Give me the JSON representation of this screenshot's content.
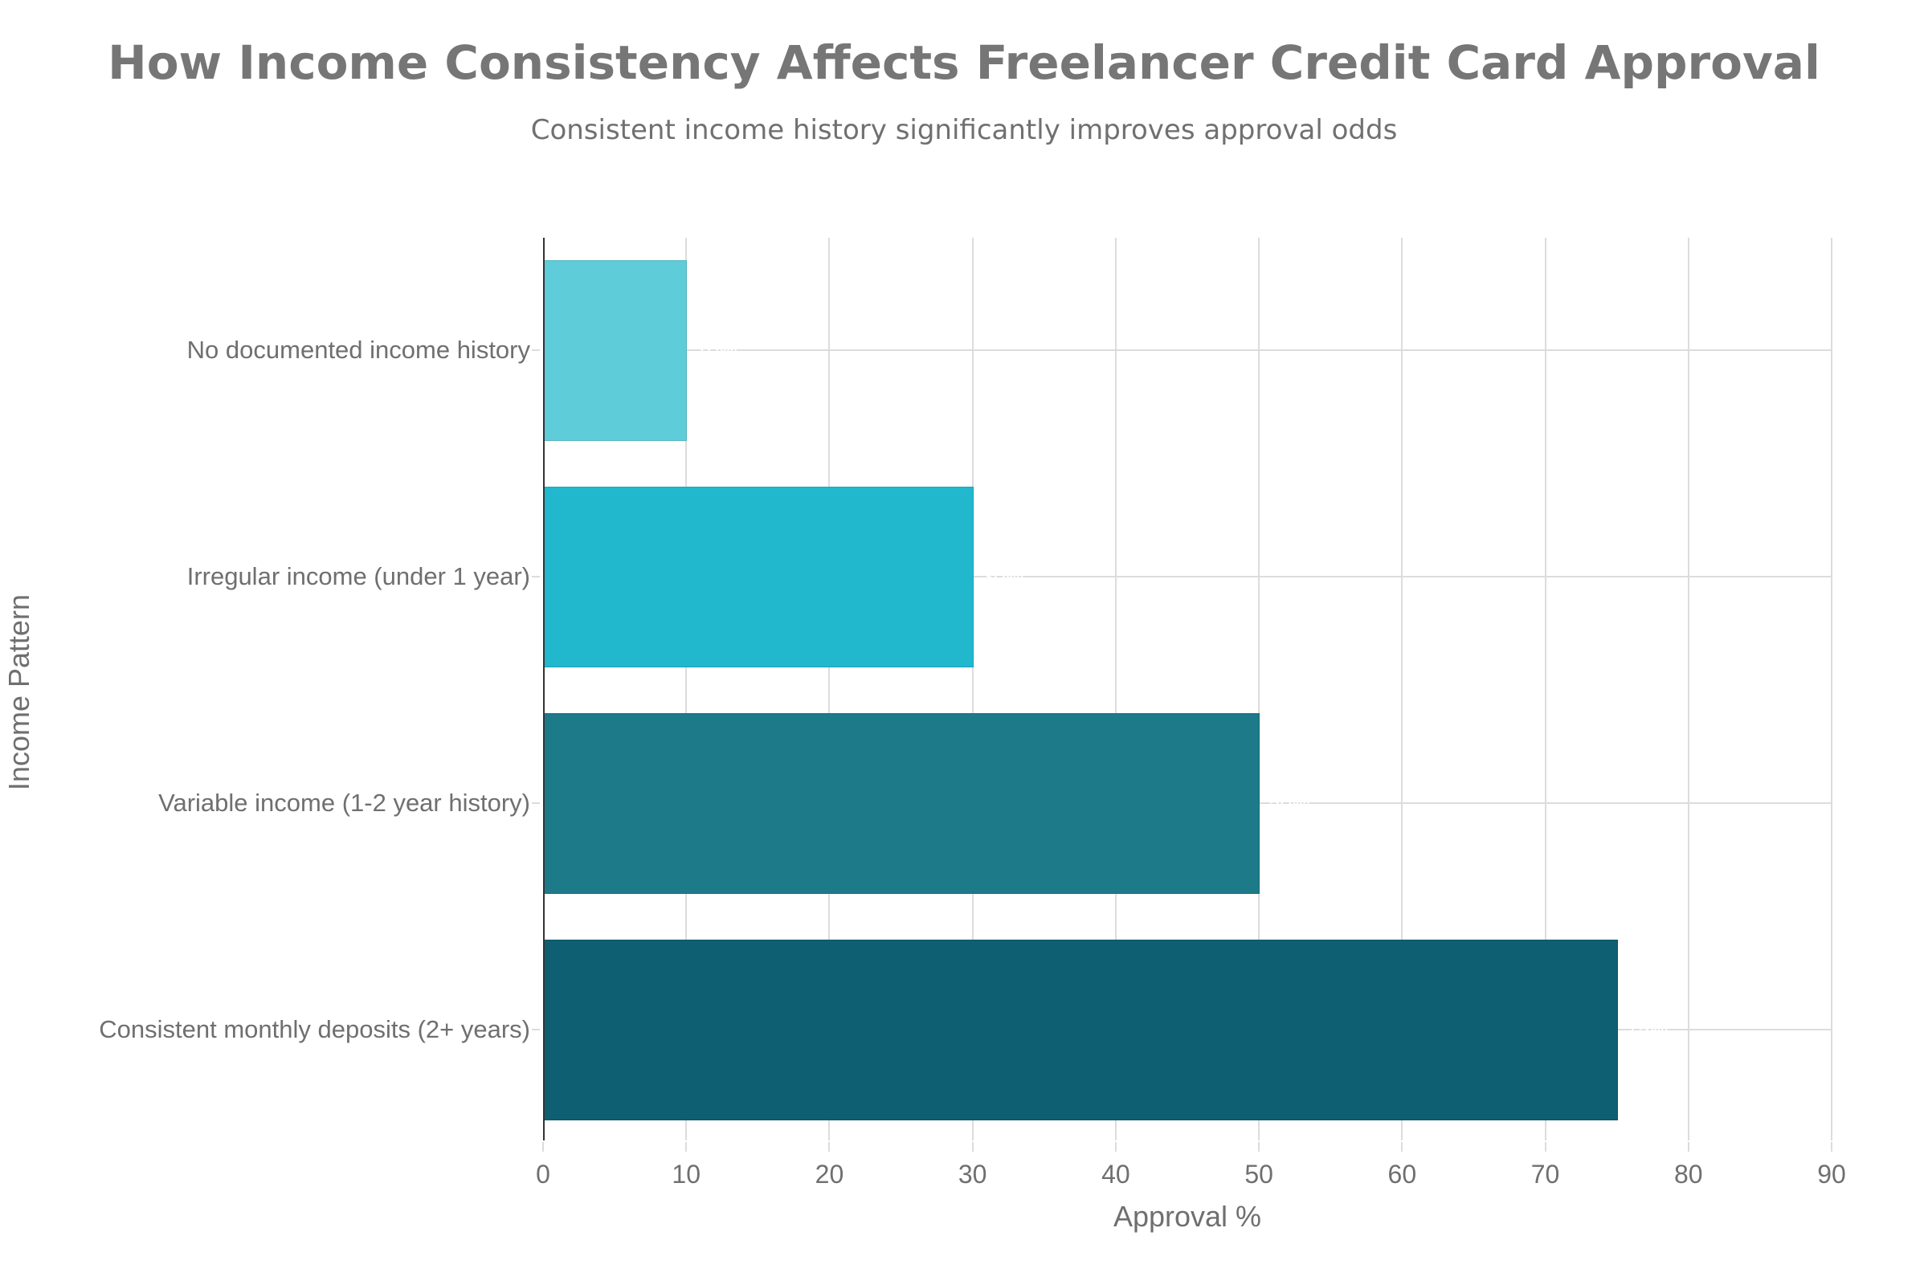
{
  "header": {
    "title": "How Income Consistency Affects Freelancer Credit Card Approval",
    "subtitle": "Consistent income history significantly improves approval odds"
  },
  "axes": {
    "x_title": "Approval %",
    "y_title": "Income Pattern",
    "x_ticks": [
      "0",
      "10",
      "20",
      "30",
      "40",
      "50",
      "60",
      "70",
      "80",
      "90"
    ]
  },
  "bars": [
    {
      "label": "No documented income history",
      "value": 10,
      "value_label": "10%",
      "color": "#5FCDD9"
    },
    {
      "label": "Irregular income (under 1 year)",
      "value": 30,
      "value_label": "30%",
      "color": "#21B8CE"
    },
    {
      "label": "Variable income (1-2 year history)",
      "value": 50,
      "value_label": "50%",
      "color": "#1D7A89"
    },
    {
      "label": "Consistent monthly deposits (2+ years)",
      "value": 75,
      "value_label": "75%",
      "color": "#0F5F72"
    }
  ],
  "chart_data": {
    "type": "bar",
    "orientation": "horizontal",
    "title": "How Income Consistency Affects Freelancer Credit Card Approval",
    "subtitle": "Consistent income history significantly improves approval odds",
    "categories": [
      "No documented income history",
      "Irregular income (under 1 year)",
      "Variable income (1-2 year history)",
      "Consistent monthly deposits (2+ years)"
    ],
    "values": [
      10,
      30,
      50,
      75
    ],
    "data_labels": [
      "10%",
      "30%",
      "50%",
      "75%"
    ],
    "colors": [
      "#5FCDD9",
      "#21B8CE",
      "#1D7A89",
      "#0F5F72"
    ],
    "xlabel": "Approval %",
    "ylabel": "Income Pattern",
    "xlim": [
      0,
      90
    ],
    "x_ticks": [
      0,
      10,
      20,
      30,
      40,
      50,
      60,
      70,
      80,
      90
    ],
    "grid": true,
    "legend": "none"
  }
}
